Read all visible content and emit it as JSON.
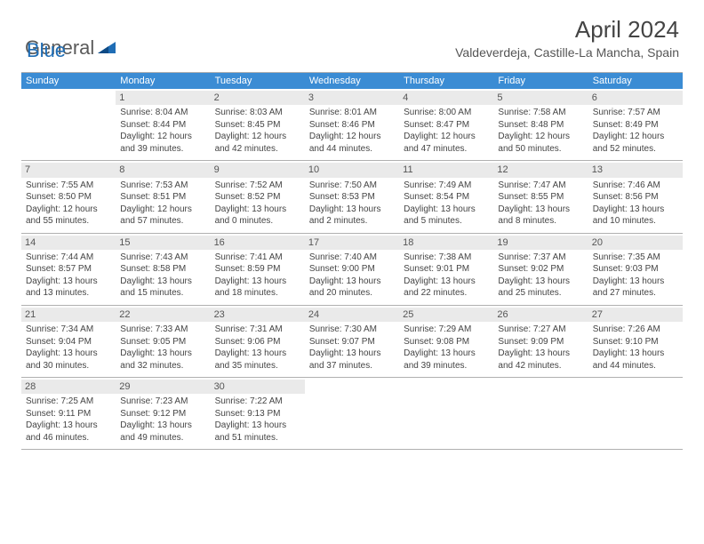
{
  "logo": {
    "text1": "General",
    "text2": "Blue"
  },
  "title": "April 2024",
  "location": "Valdeverdeja, Castille-La Mancha, Spain",
  "colors": {
    "header_bg": "#3b8cd4",
    "header_text": "#ffffff",
    "daynum_bg": "#eaeaea",
    "border": "#b0b0b0",
    "body_text": "#444444",
    "logo_gray": "#5a5a5a",
    "logo_blue": "#1f6db5"
  },
  "day_names": [
    "Sunday",
    "Monday",
    "Tuesday",
    "Wednesday",
    "Thursday",
    "Friday",
    "Saturday"
  ],
  "first_weekday": 1,
  "days": [
    {
      "n": 1,
      "sunrise": "8:04 AM",
      "sunset": "8:44 PM",
      "daylight": "12 hours and 39 minutes."
    },
    {
      "n": 2,
      "sunrise": "8:03 AM",
      "sunset": "8:45 PM",
      "daylight": "12 hours and 42 minutes."
    },
    {
      "n": 3,
      "sunrise": "8:01 AM",
      "sunset": "8:46 PM",
      "daylight": "12 hours and 44 minutes."
    },
    {
      "n": 4,
      "sunrise": "8:00 AM",
      "sunset": "8:47 PM",
      "daylight": "12 hours and 47 minutes."
    },
    {
      "n": 5,
      "sunrise": "7:58 AM",
      "sunset": "8:48 PM",
      "daylight": "12 hours and 50 minutes."
    },
    {
      "n": 6,
      "sunrise": "7:57 AM",
      "sunset": "8:49 PM",
      "daylight": "12 hours and 52 minutes."
    },
    {
      "n": 7,
      "sunrise": "7:55 AM",
      "sunset": "8:50 PM",
      "daylight": "12 hours and 55 minutes."
    },
    {
      "n": 8,
      "sunrise": "7:53 AM",
      "sunset": "8:51 PM",
      "daylight": "12 hours and 57 minutes."
    },
    {
      "n": 9,
      "sunrise": "7:52 AM",
      "sunset": "8:52 PM",
      "daylight": "13 hours and 0 minutes."
    },
    {
      "n": 10,
      "sunrise": "7:50 AM",
      "sunset": "8:53 PM",
      "daylight": "13 hours and 2 minutes."
    },
    {
      "n": 11,
      "sunrise": "7:49 AM",
      "sunset": "8:54 PM",
      "daylight": "13 hours and 5 minutes."
    },
    {
      "n": 12,
      "sunrise": "7:47 AM",
      "sunset": "8:55 PM",
      "daylight": "13 hours and 8 minutes."
    },
    {
      "n": 13,
      "sunrise": "7:46 AM",
      "sunset": "8:56 PM",
      "daylight": "13 hours and 10 minutes."
    },
    {
      "n": 14,
      "sunrise": "7:44 AM",
      "sunset": "8:57 PM",
      "daylight": "13 hours and 13 minutes."
    },
    {
      "n": 15,
      "sunrise": "7:43 AM",
      "sunset": "8:58 PM",
      "daylight": "13 hours and 15 minutes."
    },
    {
      "n": 16,
      "sunrise": "7:41 AM",
      "sunset": "8:59 PM",
      "daylight": "13 hours and 18 minutes."
    },
    {
      "n": 17,
      "sunrise": "7:40 AM",
      "sunset": "9:00 PM",
      "daylight": "13 hours and 20 minutes."
    },
    {
      "n": 18,
      "sunrise": "7:38 AM",
      "sunset": "9:01 PM",
      "daylight": "13 hours and 22 minutes."
    },
    {
      "n": 19,
      "sunrise": "7:37 AM",
      "sunset": "9:02 PM",
      "daylight": "13 hours and 25 minutes."
    },
    {
      "n": 20,
      "sunrise": "7:35 AM",
      "sunset": "9:03 PM",
      "daylight": "13 hours and 27 minutes."
    },
    {
      "n": 21,
      "sunrise": "7:34 AM",
      "sunset": "9:04 PM",
      "daylight": "13 hours and 30 minutes."
    },
    {
      "n": 22,
      "sunrise": "7:33 AM",
      "sunset": "9:05 PM",
      "daylight": "13 hours and 32 minutes."
    },
    {
      "n": 23,
      "sunrise": "7:31 AM",
      "sunset": "9:06 PM",
      "daylight": "13 hours and 35 minutes."
    },
    {
      "n": 24,
      "sunrise": "7:30 AM",
      "sunset": "9:07 PM",
      "daylight": "13 hours and 37 minutes."
    },
    {
      "n": 25,
      "sunrise": "7:29 AM",
      "sunset": "9:08 PM",
      "daylight": "13 hours and 39 minutes."
    },
    {
      "n": 26,
      "sunrise": "7:27 AM",
      "sunset": "9:09 PM",
      "daylight": "13 hours and 42 minutes."
    },
    {
      "n": 27,
      "sunrise": "7:26 AM",
      "sunset": "9:10 PM",
      "daylight": "13 hours and 44 minutes."
    },
    {
      "n": 28,
      "sunrise": "7:25 AM",
      "sunset": "9:11 PM",
      "daylight": "13 hours and 46 minutes."
    },
    {
      "n": 29,
      "sunrise": "7:23 AM",
      "sunset": "9:12 PM",
      "daylight": "13 hours and 49 minutes."
    },
    {
      "n": 30,
      "sunrise": "7:22 AM",
      "sunset": "9:13 PM",
      "daylight": "13 hours and 51 minutes."
    }
  ]
}
